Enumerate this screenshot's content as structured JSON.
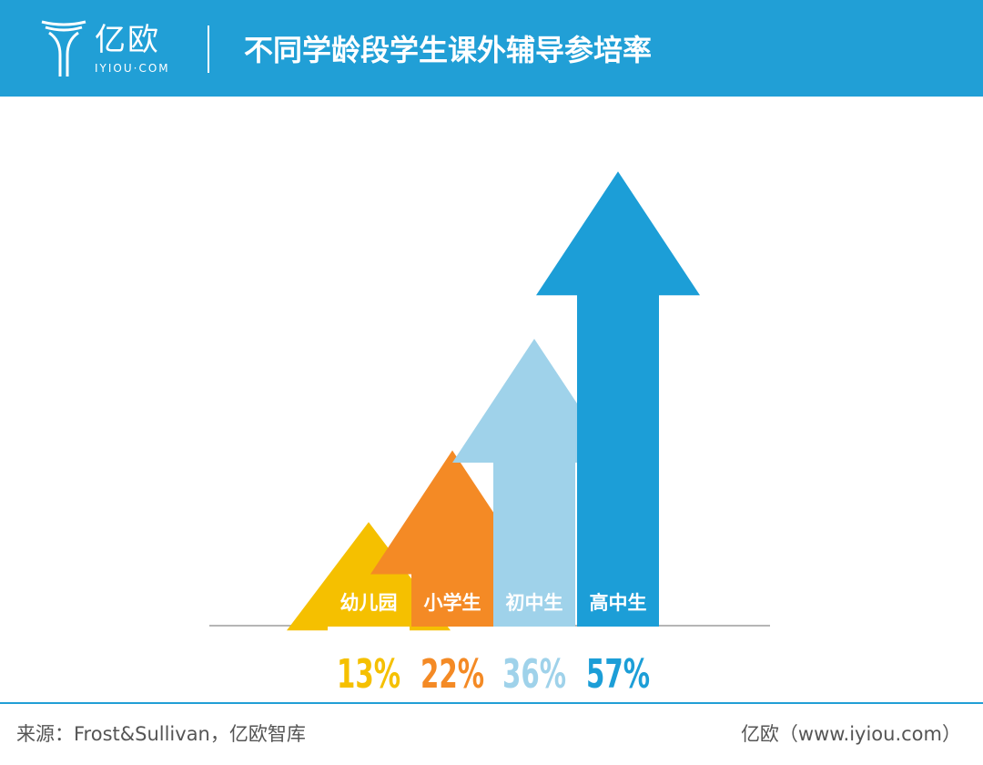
{
  "header": {
    "logo_cn": "亿欧",
    "logo_en": "IYIOU·COM",
    "title": "不同学龄段学生课外辅导参培率"
  },
  "chart_data": {
    "type": "bar",
    "title": "不同学龄段学生课外辅导参培率",
    "categories": [
      "幼儿园",
      "小学生",
      "初中生",
      "高中生"
    ],
    "values": [
      13,
      22,
      36,
      57
    ],
    "value_labels": [
      "13%",
      "22%",
      "36%",
      "57%"
    ],
    "unit": "%",
    "colors": [
      "#f5c000",
      "#f48a25",
      "#9fd2ea",
      "#1c9ed7"
    ]
  },
  "footer": {
    "source": "来源：Frost&Sullivan，亿欧智库",
    "site": "亿欧（www.iyiou.com）"
  }
}
